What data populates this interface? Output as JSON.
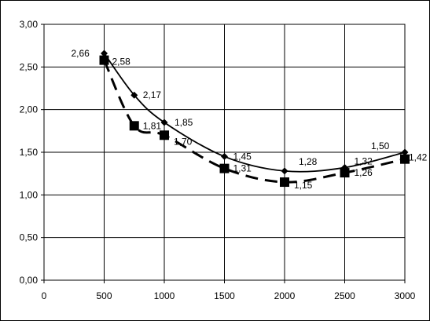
{
  "chart_data": {
    "type": "line",
    "title": "",
    "xlabel": "",
    "ylabel": "",
    "xlim": [
      0,
      3000
    ],
    "ylim": [
      0,
      3
    ],
    "x_ticks": [
      "0",
      "500",
      "1000",
      "1500",
      "2000",
      "2500",
      "3000"
    ],
    "y_ticks": [
      "0,00",
      "0,50",
      "1,00",
      "1,50",
      "2,00",
      "2,50",
      "3,00"
    ],
    "grid": true,
    "legend": "none",
    "series": [
      {
        "style": "solid",
        "marker": "diamond",
        "color": "#000000",
        "x": [
          500,
          750,
          1000,
          1500,
          2000,
          2500,
          3000
        ],
        "y": [
          2.66,
          2.17,
          1.85,
          1.45,
          1.28,
          1.32,
          1.5
        ],
        "labels": [
          "2,66",
          "2,17",
          "1,85",
          "1,45",
          "1,28",
          "1,32",
          "1,50"
        ]
      },
      {
        "style": "dashed",
        "marker": "square",
        "color": "#000000",
        "x": [
          500,
          750,
          1000,
          1500,
          2000,
          2500,
          3000
        ],
        "y": [
          2.58,
          1.81,
          1.7,
          1.31,
          1.15,
          1.26,
          1.42
        ],
        "labels": [
          "2,58",
          "1,81",
          "1,70",
          "1,31",
          "1,15",
          "1,26",
          "1,42"
        ]
      }
    ]
  }
}
